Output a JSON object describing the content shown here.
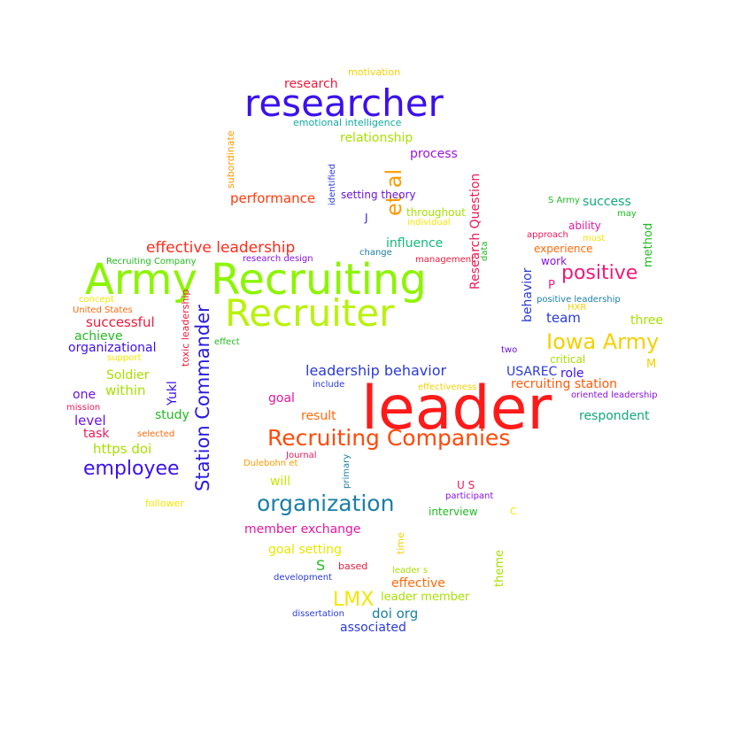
{
  "words": [
    {
      "text": "leader",
      "color": "#ff1a1a"
    },
    {
      "text": "Army Recruiting",
      "color": "#8cf500"
    },
    {
      "text": "Recruiter",
      "color": "#b9f20a"
    },
    {
      "text": "researcher",
      "color": "#3c10ee"
    },
    {
      "text": "Recruiting Companies",
      "color": "#ff4a0a"
    },
    {
      "text": "organization",
      "color": "#1a7fa6"
    },
    {
      "text": "Station Commander",
      "color": "#2a1adf"
    },
    {
      "text": "employee",
      "color": "#3c10ee"
    },
    {
      "text": "Iowa Army",
      "color": "#f5d000"
    },
    {
      "text": "positive",
      "color": "#ee1a7a"
    },
    {
      "text": "effective leadership",
      "color": "#ff2a1a"
    },
    {
      "text": "LMX",
      "color": "#f5e500"
    },
    {
      "text": "et al",
      "color": "#ff9a00"
    },
    {
      "text": "leadership behavior",
      "color": "#2a3ad8"
    },
    {
      "text": "Research Question",
      "color": "#ee1a5a"
    },
    {
      "text": "research",
      "color": "#ee1a3a"
    },
    {
      "text": "relationship",
      "color": "#a8e000"
    },
    {
      "text": "process",
      "color": "#a012e0"
    },
    {
      "text": "performance",
      "color": "#ff3a0a"
    },
    {
      "text": "influence",
      "color": "#12b87a"
    },
    {
      "text": "successful",
      "color": "#ee1a3a"
    },
    {
      "text": "organizational",
      "color": "#3c10ee"
    },
    {
      "text": "achieve",
      "color": "#22bb22"
    },
    {
      "text": "Soldier",
      "color": "#a8e000"
    },
    {
      "text": "within",
      "color": "#a8e000"
    },
    {
      "text": "success",
      "color": "#12a87a"
    },
    {
      "text": "team",
      "color": "#2a3ad8"
    },
    {
      "text": "three",
      "color": "#a8e000"
    },
    {
      "text": "behavior",
      "color": "#2a3ad8"
    },
    {
      "text": "method",
      "color": "#22bb22"
    },
    {
      "text": "ability",
      "color": "#e01aa0"
    },
    {
      "text": "experience",
      "color": "#ff6a0a"
    },
    {
      "text": "work",
      "color": "#8a12e0"
    },
    {
      "text": "P",
      "color": "#ee1a7a"
    },
    {
      "text": "USAREC",
      "color": "#2a3ad8"
    },
    {
      "text": "role",
      "color": "#3c10ee"
    },
    {
      "text": "recruiting station",
      "color": "#ff5a0a"
    },
    {
      "text": "respondent",
      "color": "#12a87a"
    },
    {
      "text": "goal",
      "color": "#e01aa0"
    },
    {
      "text": "result",
      "color": "#ff6a0a"
    },
    {
      "text": "study",
      "color": "#22bb22"
    },
    {
      "text": "https doi",
      "color": "#a8e000"
    },
    {
      "text": "level",
      "color": "#6a12e0"
    },
    {
      "text": "task",
      "color": "#ee1a5a"
    },
    {
      "text": "one",
      "color": "#6a12e0"
    },
    {
      "text": "Yukl",
      "color": "#3c10ee"
    },
    {
      "text": "will",
      "color": "#c8e800"
    },
    {
      "text": "member exchange",
      "color": "#e01aa0"
    },
    {
      "text": "goal setting",
      "color": "#e8e800"
    },
    {
      "text": "S",
      "color": "#22bb22"
    },
    {
      "text": "effective",
      "color": "#ff6a0a"
    },
    {
      "text": "leader member",
      "color": "#a8e000"
    },
    {
      "text": "doi org",
      "color": "#1a7fa6"
    },
    {
      "text": "associated",
      "color": "#2a3ad8"
    },
    {
      "text": "theme",
      "color": "#a8e000"
    },
    {
      "text": "interview",
      "color": "#22bb22"
    },
    {
      "text": "U S",
      "color": "#ee1a5a"
    },
    {
      "text": "motivation",
      "color": "#f5d000"
    },
    {
      "text": "emotional intelligence",
      "color": "#12a8a0"
    },
    {
      "text": "subordinate",
      "color": "#ff9a00"
    },
    {
      "text": "identified",
      "color": "#2a3ad8"
    },
    {
      "text": "setting theory",
      "color": "#6a12e0"
    },
    {
      "text": "throughout",
      "color": "#a8e000"
    },
    {
      "text": "individual",
      "color": "#f5e500"
    },
    {
      "text": "J",
      "color": "#3c10ee"
    },
    {
      "text": "Recruiting Company",
      "color": "#22bb22"
    },
    {
      "text": "research design",
      "color": "#8a12e0"
    },
    {
      "text": "change",
      "color": "#1a7fa6"
    },
    {
      "text": "management",
      "color": "#ee1a3a"
    },
    {
      "text": "data",
      "color": "#22bb22"
    },
    {
      "text": "S Army",
      "color": "#22bb22"
    },
    {
      "text": "may",
      "color": "#22bb22"
    },
    {
      "text": "approach",
      "color": "#ee1a5a"
    },
    {
      "text": "must",
      "color": "#f5e500"
    },
    {
      "text": "positive leadership",
      "color": "#1a7fa6"
    },
    {
      "text": "HXR",
      "color": "#f5d000"
    },
    {
      "text": "concept",
      "color": "#f5e500"
    },
    {
      "text": "United States",
      "color": "#ff6a0a"
    },
    {
      "text": "toxic leadership",
      "color": "#ee1a3a"
    },
    {
      "text": "effect",
      "color": "#22bb22"
    },
    {
      "text": "support",
      "color": "#f5e500"
    },
    {
      "text": "two",
      "color": "#6a12e0"
    },
    {
      "text": "critical",
      "color": "#a8e000"
    },
    {
      "text": "M",
      "color": "#f5d000"
    },
    {
      "text": "include",
      "color": "#2a3ad8"
    },
    {
      "text": "effectiveness",
      "color": "#f5d000"
    },
    {
      "text": "oriented leadership",
      "color": "#8a12e0"
    },
    {
      "text": "mission",
      "color": "#ee1a5a"
    },
    {
      "text": "selected",
      "color": "#ff6a0a"
    },
    {
      "text": "Journal",
      "color": "#ee1a5a"
    },
    {
      "text": "primary",
      "color": "#1a7fa6"
    },
    {
      "text": "Dulebohn et",
      "color": "#ff9a00"
    },
    {
      "text": "participant",
      "color": "#8a12e0"
    },
    {
      "text": "C",
      "color": "#f5e500"
    },
    {
      "text": "follower",
      "color": "#f5e500"
    },
    {
      "text": "time",
      "color": "#f5d000"
    },
    {
      "text": "based",
      "color": "#ee1a3a"
    },
    {
      "text": "leader s",
      "color": "#a8e000"
    },
    {
      "text": "development",
      "color": "#2a3ad8"
    },
    {
      "text": "dissertation",
      "color": "#2a3ad8"
    }
  ]
}
